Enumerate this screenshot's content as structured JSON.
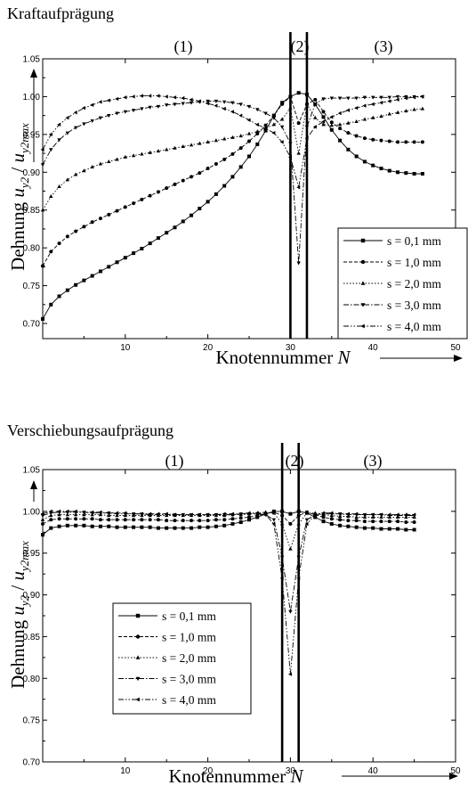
{
  "chart_data": [
    {
      "type": "line",
      "title": "Kraftaufprägung",
      "regions": [
        "(1)",
        "(2)",
        "(3)"
      ],
      "xlabel": "Knotennummer",
      "xlabel_var": "N",
      "ylabel": "Dehnung",
      "ylabel_sym1": "u",
      "ylabel_sub1": "y2",
      "ylabel_sep": " / ",
      "ylabel_sym2": "u",
      "ylabel_sub2": "y2max",
      "xlim": [
        0,
        50
      ],
      "ylim": [
        0.68,
        1.05
      ],
      "x_ticks": [
        "10",
        "20",
        "30",
        "40",
        "50"
      ],
      "y_ticks": [
        "0.70",
        "0.75",
        "0.80",
        "0.85",
        "0.90",
        "0.95",
        "1.00",
        "1.05"
      ],
      "x_tick_values": [
        10,
        20,
        30,
        40,
        50
      ],
      "y_tick_values": [
        0.7,
        0.75,
        0.8,
        0.85,
        0.9,
        0.95,
        1.0,
        1.05
      ],
      "vertical_lines": [
        30,
        32
      ],
      "legend": "right",
      "series": [
        {
          "name": "s = 0,1 mm",
          "marker": "square",
          "dash": "",
          "x": [
            0,
            1,
            2,
            3,
            4,
            5,
            6,
            7,
            8,
            9,
            10,
            11,
            12,
            13,
            14,
            15,
            16,
            17,
            18,
            19,
            20,
            21,
            22,
            23,
            24,
            25,
            26,
            27,
            28,
            29,
            30,
            31,
            32,
            33,
            34,
            35,
            36,
            37,
            38,
            39,
            40,
            41,
            42,
            43,
            44,
            45,
            46
          ],
          "y": [
            0.706,
            0.725,
            0.736,
            0.744,
            0.751,
            0.757,
            0.763,
            0.769,
            0.775,
            0.781,
            0.787,
            0.793,
            0.799,
            0.806,
            0.813,
            0.82,
            0.827,
            0.835,
            0.843,
            0.852,
            0.861,
            0.871,
            0.882,
            0.894,
            0.907,
            0.921,
            0.937,
            0.955,
            0.975,
            0.992,
            1.0,
            1.005,
            1.003,
            0.99,
            0.973,
            0.956,
            0.942,
            0.93,
            0.921,
            0.914,
            0.909,
            0.905,
            0.902,
            0.9,
            0.899,
            0.898,
            0.898
          ]
        },
        {
          "name": "s = 1,0 mm",
          "marker": "circle",
          "dash": "4,2",
          "x": [
            0,
            1,
            2,
            3,
            4,
            5,
            6,
            7,
            8,
            9,
            10,
            11,
            12,
            13,
            14,
            15,
            16,
            17,
            18,
            19,
            20,
            21,
            22,
            23,
            24,
            25,
            26,
            27,
            28,
            29,
            30,
            31,
            32,
            33,
            34,
            35,
            36,
            37,
            38,
            39,
            40,
            41,
            42,
            43,
            44,
            45,
            46
          ],
          "y": [
            0.776,
            0.795,
            0.806,
            0.815,
            0.822,
            0.828,
            0.834,
            0.839,
            0.844,
            0.849,
            0.854,
            0.859,
            0.864,
            0.869,
            0.874,
            0.879,
            0.884,
            0.889,
            0.894,
            0.899,
            0.905,
            0.911,
            0.917,
            0.924,
            0.932,
            0.941,
            0.951,
            0.962,
            0.975,
            0.99,
            1.0,
            0.965,
            0.99,
            0.996,
            0.98,
            0.966,
            0.958,
            0.952,
            0.948,
            0.945,
            0.943,
            0.942,
            0.941,
            0.94,
            0.94,
            0.94,
            0.94
          ]
        },
        {
          "name": "s = 2,0 mm",
          "marker": "triangle-up",
          "dash": "1.5,2",
          "x": [
            0,
            1,
            2,
            3,
            4,
            5,
            6,
            7,
            8,
            9,
            10,
            11,
            12,
            13,
            14,
            15,
            16,
            17,
            18,
            19,
            20,
            21,
            22,
            23,
            24,
            25,
            26,
            27,
            28,
            29,
            30,
            31,
            32,
            33,
            34,
            35,
            36,
            37,
            38,
            39,
            40,
            41,
            42,
            43,
            44,
            45,
            46
          ],
          "y": [
            0.85,
            0.868,
            0.881,
            0.89,
            0.897,
            0.902,
            0.907,
            0.911,
            0.914,
            0.917,
            0.92,
            0.922,
            0.924,
            0.926,
            0.928,
            0.93,
            0.932,
            0.934,
            0.936,
            0.938,
            0.94,
            0.942,
            0.944,
            0.946,
            0.948,
            0.951,
            0.954,
            0.958,
            0.963,
            0.97,
            0.985,
            0.925,
            0.99,
            0.972,
            0.963,
            0.962,
            0.963,
            0.965,
            0.967,
            0.97,
            0.972,
            0.974,
            0.977,
            0.979,
            0.981,
            0.983,
            0.984
          ]
        },
        {
          "name": "s = 3,0 mm",
          "marker": "triangle-down",
          "dash": "6,2,1.5,2",
          "x": [
            0,
            1,
            2,
            3,
            4,
            5,
            6,
            7,
            8,
            9,
            10,
            11,
            12,
            13,
            14,
            15,
            16,
            17,
            18,
            19,
            20,
            21,
            22,
            23,
            24,
            25,
            26,
            27,
            28,
            29,
            30,
            31,
            32,
            33,
            34,
            35,
            36,
            37,
            38,
            39,
            40,
            41,
            42,
            43,
            44,
            45,
            46
          ],
          "y": [
            0.91,
            0.93,
            0.943,
            0.952,
            0.959,
            0.964,
            0.968,
            0.972,
            0.975,
            0.978,
            0.98,
            0.982,
            0.984,
            0.986,
            0.987,
            0.989,
            0.99,
            0.991,
            0.992,
            0.993,
            0.994,
            0.994,
            0.993,
            0.992,
            0.99,
            0.987,
            0.983,
            0.978,
            0.972,
            0.96,
            0.938,
            0.78,
            0.96,
            0.99,
            0.997,
            0.998,
            0.998,
            0.998,
            0.998,
            0.999,
            0.999,
            0.999,
            0.999,
            1.0,
            1.0,
            1.0,
            1.0
          ]
        },
        {
          "name": "s = 4,0 mm",
          "marker": "triangle-left",
          "dash": "6,2,1.5,2,1.5,2",
          "x": [
            0,
            1,
            2,
            3,
            4,
            5,
            6,
            7,
            8,
            9,
            10,
            11,
            12,
            13,
            14,
            15,
            16,
            17,
            18,
            19,
            20,
            21,
            22,
            23,
            24,
            25,
            26,
            27,
            28,
            29,
            30,
            31,
            32,
            33,
            34,
            35,
            36,
            37,
            38,
            39,
            40,
            41,
            42,
            43,
            44,
            45,
            46
          ],
          "y": [
            0.93,
            0.95,
            0.963,
            0.972,
            0.979,
            0.985,
            0.989,
            0.993,
            0.995,
            0.997,
            0.999,
            1.0,
            1.001,
            1.001,
            1.001,
            1.0,
            0.999,
            0.998,
            0.996,
            0.994,
            0.991,
            0.988,
            0.984,
            0.98,
            0.975,
            0.969,
            0.963,
            0.958,
            0.952,
            0.94,
            0.92,
            0.88,
            0.945,
            0.96,
            0.967,
            0.973,
            0.978,
            0.982,
            0.985,
            0.988,
            0.99,
            0.992,
            0.994,
            0.996,
            0.998,
            0.999,
            1.0
          ]
        }
      ]
    },
    {
      "type": "line",
      "title": "Verschiebungsaufprägung",
      "regions": [
        "(1)",
        "(2)",
        "(3)"
      ],
      "xlabel": "Knotennummer",
      "xlabel_var": "N",
      "ylabel": "Dehnung",
      "ylabel_sym1": "u",
      "ylabel_sub1": "y2",
      "ylabel_sep": " / ",
      "ylabel_sym2": "u",
      "ylabel_sub2": "y2max",
      "xlim": [
        0,
        50
      ],
      "ylim": [
        0.7,
        1.05
      ],
      "x_ticks": [
        "10",
        "20",
        "30",
        "40",
        "50"
      ],
      "y_ticks": [
        "0.70",
        "0.75",
        "0.80",
        "0.85",
        "0.90",
        "0.95",
        "1.00",
        "1.05"
      ],
      "x_tick_values": [
        10,
        20,
        30,
        40,
        50
      ],
      "y_tick_values": [
        0.7,
        0.75,
        0.8,
        0.85,
        0.9,
        0.95,
        1.0,
        1.05
      ],
      "vertical_lines": [
        29,
        31
      ],
      "legend": "bottom-left",
      "series": [
        {
          "name": "s = 0,1 mm",
          "marker": "square",
          "dash": "",
          "x": [
            0,
            1,
            2,
            3,
            4,
            5,
            6,
            7,
            8,
            9,
            10,
            11,
            12,
            13,
            14,
            15,
            16,
            17,
            18,
            19,
            20,
            21,
            22,
            23,
            24,
            25,
            26,
            27,
            28,
            29,
            30,
            31,
            32,
            33,
            34,
            35,
            36,
            37,
            38,
            39,
            40,
            41,
            42,
            43,
            44,
            45
          ],
          "y": [
            0.972,
            0.98,
            0.982,
            0.983,
            0.983,
            0.983,
            0.982,
            0.982,
            0.982,
            0.981,
            0.981,
            0.981,
            0.981,
            0.981,
            0.98,
            0.98,
            0.98,
            0.98,
            0.98,
            0.981,
            0.981,
            0.982,
            0.983,
            0.985,
            0.987,
            0.99,
            0.993,
            0.997,
            1.0,
            1.0,
            0.997,
            1.0,
            0.998,
            0.993,
            0.988,
            0.985,
            0.983,
            0.982,
            0.981,
            0.98,
            0.98,
            0.979,
            0.979,
            0.979,
            0.978,
            0.978
          ]
        },
        {
          "name": "s = 1,0 mm",
          "marker": "circle",
          "dash": "4,2",
          "x": [
            0,
            1,
            2,
            3,
            4,
            5,
            6,
            7,
            8,
            9,
            10,
            11,
            12,
            13,
            14,
            15,
            16,
            17,
            18,
            19,
            20,
            21,
            22,
            23,
            24,
            25,
            26,
            27,
            28,
            29,
            30,
            31,
            32,
            33,
            34,
            35,
            36,
            37,
            38,
            39,
            40,
            41,
            42,
            43,
            44,
            45
          ],
          "y": [
            0.985,
            0.99,
            0.991,
            0.991,
            0.991,
            0.991,
            0.991,
            0.99,
            0.99,
            0.99,
            0.99,
            0.99,
            0.99,
            0.99,
            0.99,
            0.989,
            0.989,
            0.989,
            0.989,
            0.989,
            0.989,
            0.99,
            0.99,
            0.991,
            0.992,
            0.993,
            0.995,
            0.997,
            0.999,
            0.995,
            0.985,
            0.995,
            0.999,
            0.996,
            0.993,
            0.991,
            0.99,
            0.989,
            0.989,
            0.988,
            0.988,
            0.988,
            0.988,
            0.988,
            0.987,
            0.987
          ]
        },
        {
          "name": "s = 2,0 mm",
          "marker": "triangle-up",
          "dash": "1.5,2",
          "x": [
            0,
            1,
            2,
            3,
            4,
            5,
            6,
            7,
            8,
            9,
            10,
            11,
            12,
            13,
            14,
            15,
            16,
            17,
            18,
            19,
            20,
            21,
            22,
            23,
            24,
            25,
            26,
            27,
            28,
            29,
            30,
            31,
            32,
            33,
            34,
            35,
            36,
            37,
            38,
            39,
            40,
            41,
            42,
            43,
            44,
            45
          ],
          "y": [
            0.99,
            0.995,
            0.996,
            0.996,
            0.996,
            0.996,
            0.996,
            0.996,
            0.995,
            0.995,
            0.995,
            0.995,
            0.995,
            0.995,
            0.995,
            0.995,
            0.995,
            0.995,
            0.995,
            0.995,
            0.995,
            0.995,
            0.995,
            0.996,
            0.996,
            0.997,
            0.998,
            0.999,
            0.998,
            0.985,
            0.955,
            0.985,
            0.998,
            0.998,
            0.996,
            0.995,
            0.994,
            0.994,
            0.993,
            0.993,
            0.993,
            0.993,
            0.993,
            0.993,
            0.993,
            0.993
          ]
        },
        {
          "name": "s = 3,0 mm",
          "marker": "triangle-down",
          "dash": "6,2,1.5,2",
          "x": [
            0,
            1,
            2,
            3,
            4,
            5,
            6,
            7,
            8,
            9,
            10,
            11,
            12,
            13,
            14,
            15,
            16,
            17,
            18,
            19,
            20,
            21,
            22,
            23,
            24,
            25,
            26,
            27,
            28,
            29,
            30,
            31,
            32,
            33,
            34,
            35,
            36,
            37,
            38,
            39,
            40,
            41,
            42,
            43,
            44,
            45
          ],
          "y": [
            0.995,
            0.998,
            0.999,
            0.999,
            0.999,
            0.999,
            0.998,
            0.998,
            0.998,
            0.997,
            0.997,
            0.997,
            0.997,
            0.996,
            0.996,
            0.996,
            0.996,
            0.996,
            0.996,
            0.996,
            0.996,
            0.996,
            0.996,
            0.996,
            0.997,
            0.997,
            0.997,
            0.996,
            0.99,
            0.945,
            0.88,
            0.945,
            0.99,
            0.996,
            0.997,
            0.997,
            0.997,
            0.996,
            0.996,
            0.996,
            0.996,
            0.996,
            0.995,
            0.995,
            0.995,
            0.995
          ]
        },
        {
          "name": "s = 4,0 mm",
          "marker": "triangle-left",
          "dash": "6,2,1.5,2,1.5,2",
          "x": [
            0,
            1,
            2,
            3,
            4,
            5,
            6,
            7,
            8,
            9,
            10,
            11,
            12,
            13,
            14,
            15,
            16,
            17,
            18,
            19,
            20,
            21,
            22,
            23,
            24,
            25,
            26,
            27,
            28,
            29,
            30,
            31,
            32,
            33,
            34,
            35,
            36,
            37,
            38,
            39,
            40,
            41,
            42,
            43,
            44,
            45
          ],
          "y": [
            0.997,
            1.0,
            1.0,
            1.0,
            1.0,
            0.999,
            0.999,
            0.999,
            0.998,
            0.998,
            0.998,
            0.997,
            0.997,
            0.997,
            0.997,
            0.997,
            0.996,
            0.996,
            0.996,
            0.996,
            0.996,
            0.996,
            0.997,
            0.997,
            0.997,
            0.998,
            0.998,
            0.996,
            0.985,
            0.92,
            0.805,
            0.92,
            0.985,
            0.996,
            0.998,
            0.998,
            0.997,
            0.997,
            0.997,
            0.996,
            0.996,
            0.996,
            0.996,
            0.996,
            0.996,
            0.996
          ]
        }
      ]
    }
  ]
}
